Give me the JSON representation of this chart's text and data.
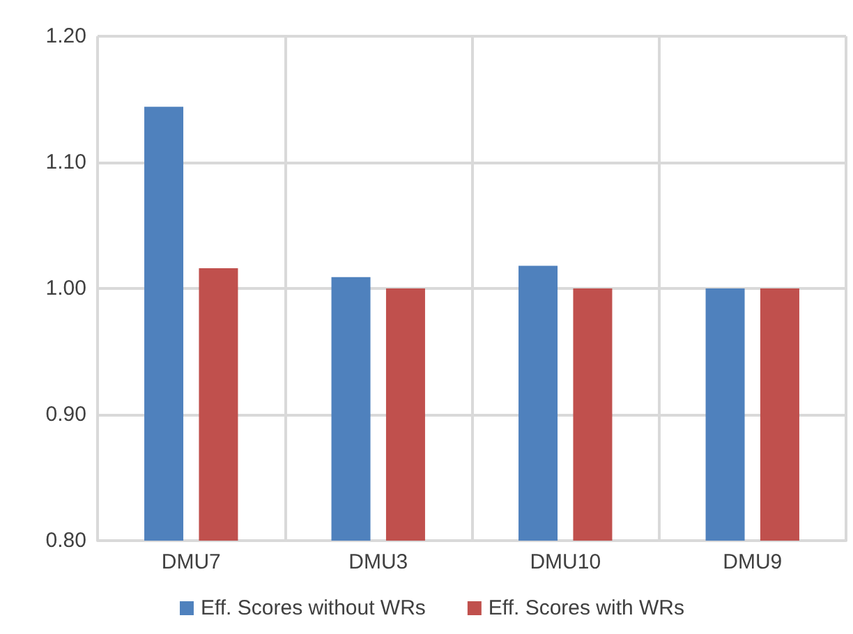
{
  "chart_data": {
    "type": "bar",
    "categories": [
      "DMU7",
      "DMU3",
      "DMU10",
      "DMU9"
    ],
    "series": [
      {
        "name": "Eff. Scores without WRs",
        "color": "#4f81bd",
        "values": [
          1.144,
          1.009,
          1.018,
          1.0
        ]
      },
      {
        "name": "Eff. Scores with WRs",
        "color": "#c0504d",
        "values": [
          1.016,
          1.0,
          1.0,
          1.0
        ]
      }
    ],
    "ylim": [
      0.8,
      1.2
    ],
    "yticks": [
      {
        "value": 0.8,
        "label": "0.80"
      },
      {
        "value": 0.9,
        "label": "0.90"
      },
      {
        "value": 1.0,
        "label": "1.00"
      },
      {
        "value": 1.1,
        "label": "1.10"
      },
      {
        "value": 1.2,
        "label": "1.20"
      }
    ],
    "grid": true,
    "legend": "bottom"
  }
}
